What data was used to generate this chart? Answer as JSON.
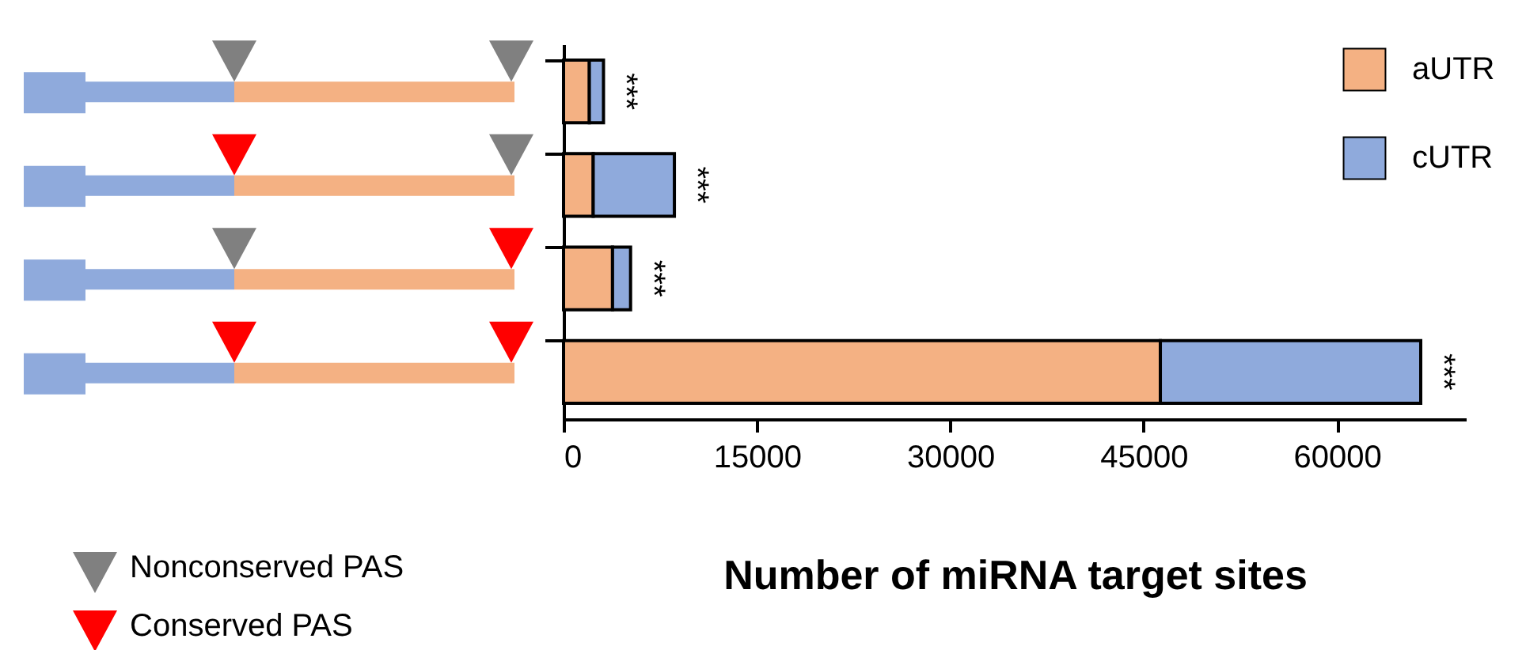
{
  "chart_data": {
    "type": "bar",
    "orientation": "horizontal",
    "stacked": true,
    "xlabel": "Number of miRNA target sites",
    "categories": [
      null,
      null,
      null,
      null
    ],
    "series": [
      {
        "name": "aUTR",
        "color": "#f4b183",
        "values": [
          2000,
          2300,
          3800,
          46300
        ]
      },
      {
        "name": "cUTR",
        "color": "#8faadc",
        "values": [
          1100,
          6300,
          1400,
          20200
        ]
      }
    ],
    "xlim": [
      0,
      70000
    ],
    "xticks": [
      0,
      15000,
      30000,
      45000,
      60000
    ],
    "legend": "top right",
    "annotations": [
      "***",
      "***",
      "***",
      "***",
      "Nonconserved PAS",
      "Conserved PAS"
    ]
  }
}
